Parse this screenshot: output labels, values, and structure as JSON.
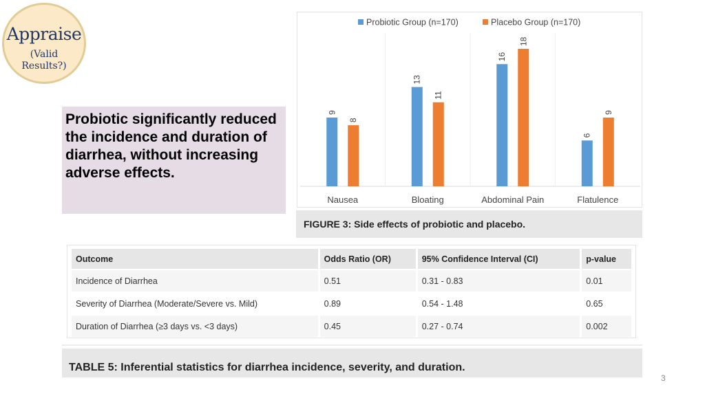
{
  "badge": {
    "title": "Appraise",
    "subtitle_line1": "(Valid",
    "subtitle_line2": "Results?)",
    "fill_color": "#fbe9c8",
    "border_color": "#e2cc96",
    "text_color": "#1f3768"
  },
  "callout": {
    "text": "Probiotic significantly reduced the incidence and duration of diarrhea, without increasing adverse effects.",
    "background_color": "#e6dce6"
  },
  "figure_caption": "FIGURE 3: Side effects of probiotic and placebo.",
  "chart_data": {
    "type": "bar",
    "title": "",
    "xlabel": "",
    "ylabel": "",
    "categories": [
      "Nausea",
      "Bloating",
      "Abdominal Pain",
      "Flatulence"
    ],
    "series": [
      {
        "name": "Probiotic Group (n=170)",
        "color": "#5b9bd5",
        "values": [
          9,
          13,
          16,
          6
        ]
      },
      {
        "name": "Placebo Group (n=170)",
        "color": "#ed7d31",
        "values": [
          8,
          11,
          18,
          9
        ]
      }
    ],
    "ylim": [
      0,
      18
    ],
    "grid": false,
    "legend_position": "top-center",
    "data_labels": true,
    "data_label_rotation": "vertical"
  },
  "table": {
    "headers": [
      "Outcome",
      "Odds Ratio (OR)",
      "95% Confidence Interval (CI)",
      "p-value"
    ],
    "rows": [
      [
        "Incidence of Diarrhea",
        "0.51",
        "0.31 - 0.83",
        "0.01"
      ],
      [
        "Severity of Diarrhea (Moderate/Severe vs. Mild)",
        "0.89",
        "0.54 - 1.48",
        "0.65"
      ],
      [
        "Duration of Diarrhea (≥3 days vs. <3 days)",
        "0.45",
        "0.27 - 0.74",
        "0.002"
      ]
    ]
  },
  "table_caption": "TABLE 5: Inferential statistics for diarrhea incidence, severity, and duration.",
  "page_number": "3"
}
